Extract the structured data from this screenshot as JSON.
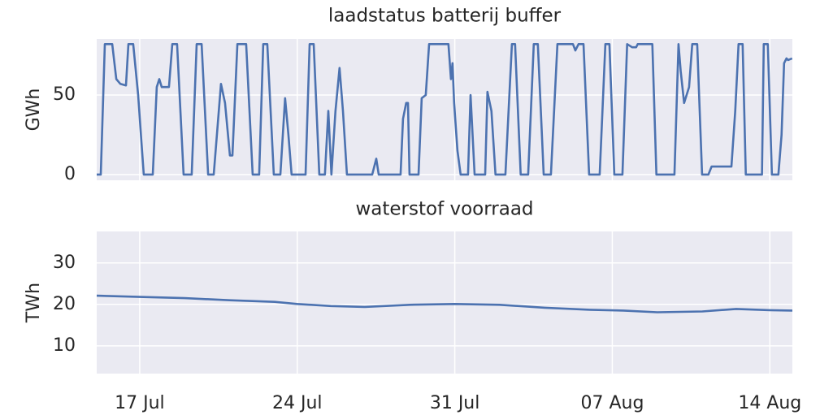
{
  "chart_data": [
    {
      "type": "line",
      "title": "laadstatus batterij buffer",
      "ylabel": "GWh",
      "color": "#4c72b0",
      "grid": true,
      "x": [
        15.09,
        15.27,
        15.45,
        15.78,
        15.96,
        16.14,
        16.39,
        16.5,
        16.71,
        16.93,
        17.08,
        17.18,
        17.58,
        17.76,
        17.87,
        17.98,
        18.3,
        18.45,
        18.66,
        18.95,
        19.31,
        19.53,
        19.75,
        20.04,
        20.29,
        20.61,
        20.79,
        21.01,
        21.12,
        21.34,
        21.73,
        22.02,
        22.31,
        22.49,
        22.67,
        22.96,
        23.25,
        23.46,
        23.61,
        23.75,
        24.37,
        24.55,
        24.73,
        24.98,
        25.23,
        25.38,
        25.52,
        25.7,
        25.88,
        26.03,
        26.21,
        27.33,
        27.51,
        27.62,
        28.59,
        28.7,
        28.84,
        28.92,
        28.99,
        29.39,
        29.53,
        29.71,
        29.86,
        30.72,
        30.83,
        30.9,
        30.97,
        31.12,
        31.26,
        31.59,
        31.7,
        31.88,
        32.35,
        32.45,
        32.63,
        32.81,
        33.25,
        33.54,
        33.68,
        33.93,
        34.26,
        34.51,
        34.69,
        34.95,
        35.27,
        35.56,
        36.25,
        36.36,
        36.5,
        36.72,
        36.97,
        37.44,
        37.69,
        37.87,
        38.09,
        38.45,
        38.66,
        38.88,
        39.06,
        39.13,
        39.78,
        39.96,
        40.76,
        40.94,
        41.04,
        41.19,
        41.41,
        41.55,
        41.77,
        41.99,
        42.27,
        42.41,
        43.29,
        43.46,
        43.61,
        43.79,
        43.93,
        44.65,
        44.73,
        44.91,
        45.09,
        45.38,
        45.52,
        45.63,
        45.74,
        45.81,
        45.99
      ],
      "values": [
        0,
        0,
        82,
        82,
        60,
        57,
        56,
        82,
        82,
        50,
        20,
        0,
        0,
        55,
        60,
        55,
        55,
        82,
        82,
        0,
        0,
        82,
        82,
        0,
        0,
        57,
        45,
        12,
        12,
        82,
        82,
        0,
        0,
        82,
        82,
        0,
        0,
        48,
        25,
        0,
        0,
        82,
        82,
        0,
        0,
        40,
        0,
        40,
        67,
        40,
        0,
        0,
        10,
        0,
        0,
        35,
        45,
        45,
        0,
        0,
        48,
        50,
        82,
        82,
        60,
        70,
        45,
        15,
        0,
        0,
        50,
        0,
        0,
        52,
        40,
        0,
        0,
        82,
        82,
        0,
        0,
        82,
        82,
        0,
        0,
        82,
        82,
        78,
        82,
        82,
        0,
        0,
        82,
        82,
        0,
        0,
        82,
        80,
        80,
        82,
        82,
        0,
        0,
        82,
        65,
        45,
        55,
        82,
        82,
        0,
        0,
        5,
        5,
        40,
        82,
        82,
        0,
        0,
        82,
        82,
        0,
        0,
        25,
        70,
        73,
        72,
        73
      ],
      "xlim": [
        15.09,
        46.0
      ],
      "xticks": [
        17,
        24,
        31,
        38,
        45
      ],
      "ylim": [
        -3.6,
        85.2
      ],
      "yticks": [
        0,
        50
      ]
    },
    {
      "type": "line",
      "title": "waterstof voorraad",
      "ylabel": "TWh",
      "color": "#4c72b0",
      "grid": true,
      "x": [
        15.09,
        17,
        19,
        21,
        23,
        24,
        25.5,
        27,
        29,
        31,
        33,
        35,
        37,
        38.5,
        40,
        42,
        43.5,
        45,
        46
      ],
      "values": [
        22.1,
        21.8,
        21.5,
        21.0,
        20.6,
        20.1,
        19.6,
        19.4,
        19.9,
        20.1,
        19.9,
        19.2,
        18.7,
        18.5,
        18.1,
        18.3,
        18.9,
        18.6,
        18.5
      ],
      "xlim": [
        15.09,
        46.0
      ],
      "xticks": [
        {
          "value": 17,
          "label": "17 Jul"
        },
        {
          "value": 24,
          "label": "24 Jul"
        },
        {
          "value": 31,
          "label": "31 Jul"
        },
        {
          "value": 38,
          "label": "07 Aug"
        },
        {
          "value": 45,
          "label": "14 Aug"
        }
      ],
      "ylim": [
        3.3,
        37.6
      ],
      "yticks": [
        10,
        20,
        30
      ]
    }
  ]
}
